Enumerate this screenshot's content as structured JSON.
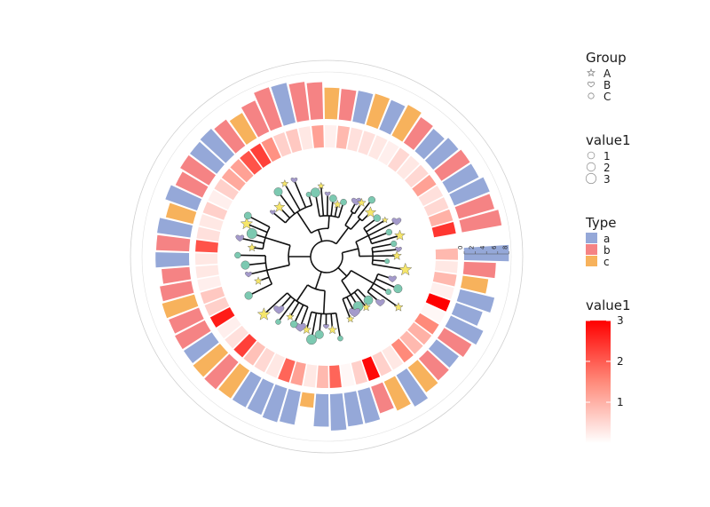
{
  "chart_data": {
    "type": "circular-tree-with-ring-heatmap-and-ring-bar",
    "types": [
      "a",
      "b",
      "c"
    ],
    "type_colors": {
      "a": "#95a8d8",
      "b": "#f58384",
      "c": "#f7b25c"
    },
    "heat_range": [
      0,
      3
    ],
    "heat_colors": [
      "#ffffff",
      "#ff8a7a",
      "#ff0000"
    ],
    "bar_axis_ticks": [
      0,
      2,
      4,
      6,
      8
    ],
    "bar_max": 8,
    "records": [
      {
        "type": "a",
        "bar": 8.0,
        "heat": 0.9
      },
      {
        "type": "b",
        "bar": 5.7,
        "heat": 0.3
      },
      {
        "type": "c",
        "bar": 4.6,
        "heat": 0.9
      },
      {
        "type": "a",
        "bar": 6.3,
        "heat": 0.2
      },
      {
        "type": "a",
        "bar": 5.0,
        "heat": 3.0
      },
      {
        "type": "a",
        "bar": 6.4,
        "heat": 0.1
      },
      {
        "type": "b",
        "bar": 5.7,
        "heat": 1.5
      },
      {
        "type": "a",
        "bar": 5.0,
        "heat": 1.0
      },
      {
        "type": "b",
        "bar": 5.2,
        "heat": 0.9
      },
      {
        "type": "c",
        "bar": 5.5,
        "heat": 1.5
      },
      {
        "type": "a",
        "bar": 6.5,
        "heat": 0.3
      },
      {
        "type": "c",
        "bar": 5.7,
        "heat": 0.6
      },
      {
        "type": "b",
        "bar": 5.0,
        "heat": 2.9
      },
      {
        "type": "a",
        "bar": 6.0,
        "heat": 0.6
      },
      {
        "type": "a",
        "bar": 6.0,
        "heat": 0.1
      },
      {
        "type": "a",
        "bar": 6.5,
        "heat": 1.9
      },
      {
        "type": "a",
        "bar": 5.8,
        "heat": 0.9
      },
      {
        "type": "c",
        "bar": 2.5,
        "heat": 0.3
      },
      {
        "type": "a",
        "bar": 6.0,
        "heat": 1.2
      },
      {
        "type": "a",
        "bar": 6.3,
        "heat": 1.9
      },
      {
        "type": "a",
        "bar": 6.0,
        "heat": 0.3
      },
      {
        "type": "a",
        "bar": 6.0,
        "heat": 0.5
      },
      {
        "type": "c",
        "bar": 6.0,
        "heat": 0.8
      },
      {
        "type": "b",
        "bar": 6.3,
        "heat": 2.3
      },
      {
        "type": "c",
        "bar": 6.2,
        "heat": 0.4
      },
      {
        "type": "a",
        "bar": 6.0,
        "heat": 0.2
      },
      {
        "type": "b",
        "bar": 6.0,
        "heat": 2.7
      },
      {
        "type": "b",
        "bar": 5.8,
        "heat": 0.6
      },
      {
        "type": "c",
        "bar": 6.0,
        "heat": 0.7
      },
      {
        "type": "b",
        "bar": 5.7,
        "heat": 0.2
      },
      {
        "type": "b",
        "bar": 5.0,
        "heat": 0.3
      },
      {
        "type": "a",
        "bar": 6.0,
        "heat": 0.3
      },
      {
        "type": "b",
        "bar": 5.9,
        "heat": 2.1
      },
      {
        "type": "a",
        "bar": 6.0,
        "heat": 0.4
      },
      {
        "type": "c",
        "bar": 5.0,
        "heat": 0.3
      },
      {
        "type": "a",
        "bar": 6.0,
        "heat": 0.6
      },
      {
        "type": "b",
        "bar": 5.3,
        "heat": 0.2
      },
      {
        "type": "b",
        "bar": 6.0,
        "heat": 0.6
      },
      {
        "type": "a",
        "bar": 6.0,
        "heat": 1.1
      },
      {
        "type": "a",
        "bar": 6.2,
        "heat": 1.2
      },
      {
        "type": "b",
        "bar": 5.8,
        "heat": 2.1
      },
      {
        "type": "c",
        "bar": 5.2,
        "heat": 2.3
      },
      {
        "type": "b",
        "bar": 6.1,
        "heat": 1.4
      },
      {
        "type": "b",
        "bar": 7.4,
        "heat": 0.6
      },
      {
        "type": "a",
        "bar": 7.3,
        "heat": 0.7
      },
      {
        "type": "b",
        "bar": 6.9,
        "heat": 0.3
      },
      {
        "type": "b",
        "bar": 6.6,
        "heat": 1.2
      },
      {
        "type": "c",
        "bar": 5.6,
        "heat": 0.2
      },
      {
        "type": "b",
        "bar": 5.5,
        "heat": 0.9
      },
      {
        "type": "a",
        "bar": 5.6,
        "heat": 0.4
      },
      {
        "type": "c",
        "bar": 5.8,
        "heat": 0.4
      },
      {
        "type": "a",
        "bar": 5.7,
        "heat": 0.3
      },
      {
        "type": "c",
        "bar": 6.2,
        "heat": 0.2
      },
      {
        "type": "b",
        "bar": 5.5,
        "heat": 0.5
      },
      {
        "type": "a",
        "bar": 5.2,
        "heat": 0.3
      },
      {
        "type": "a",
        "bar": 5.8,
        "heat": 0.5
      },
      {
        "type": "b",
        "bar": 6.1,
        "heat": 1.2
      },
      {
        "type": "a",
        "bar": 6.1,
        "heat": 0.4
      },
      {
        "type": "a",
        "bar": 6.8,
        "heat": 0.5
      },
      {
        "type": "b",
        "bar": 6.6,
        "heat": 1.0
      },
      {
        "type": "b",
        "bar": 7.2,
        "heat": 2.4
      }
    ],
    "legends": [
      {
        "title": "Group",
        "kind": "shape",
        "entries": [
          {
            "label": "A",
            "shape": "star"
          },
          {
            "label": "B",
            "shape": "heart"
          },
          {
            "label": "C",
            "shape": "circle"
          }
        ]
      },
      {
        "title": "value1",
        "kind": "size",
        "entries": [
          {
            "label": "1",
            "size": 1
          },
          {
            "label": "2",
            "size": 2
          },
          {
            "label": "3",
            "size": 3
          }
        ]
      },
      {
        "title": "Type",
        "kind": "fill",
        "entries": [
          {
            "label": "a",
            "color": "#95a8d8"
          },
          {
            "label": "b",
            "color": "#f58384"
          },
          {
            "label": "c",
            "color": "#f7b25c"
          }
        ]
      },
      {
        "title": "value1",
        "kind": "colorbar",
        "ticks": [
          1,
          2,
          3
        ]
      }
    ]
  }
}
